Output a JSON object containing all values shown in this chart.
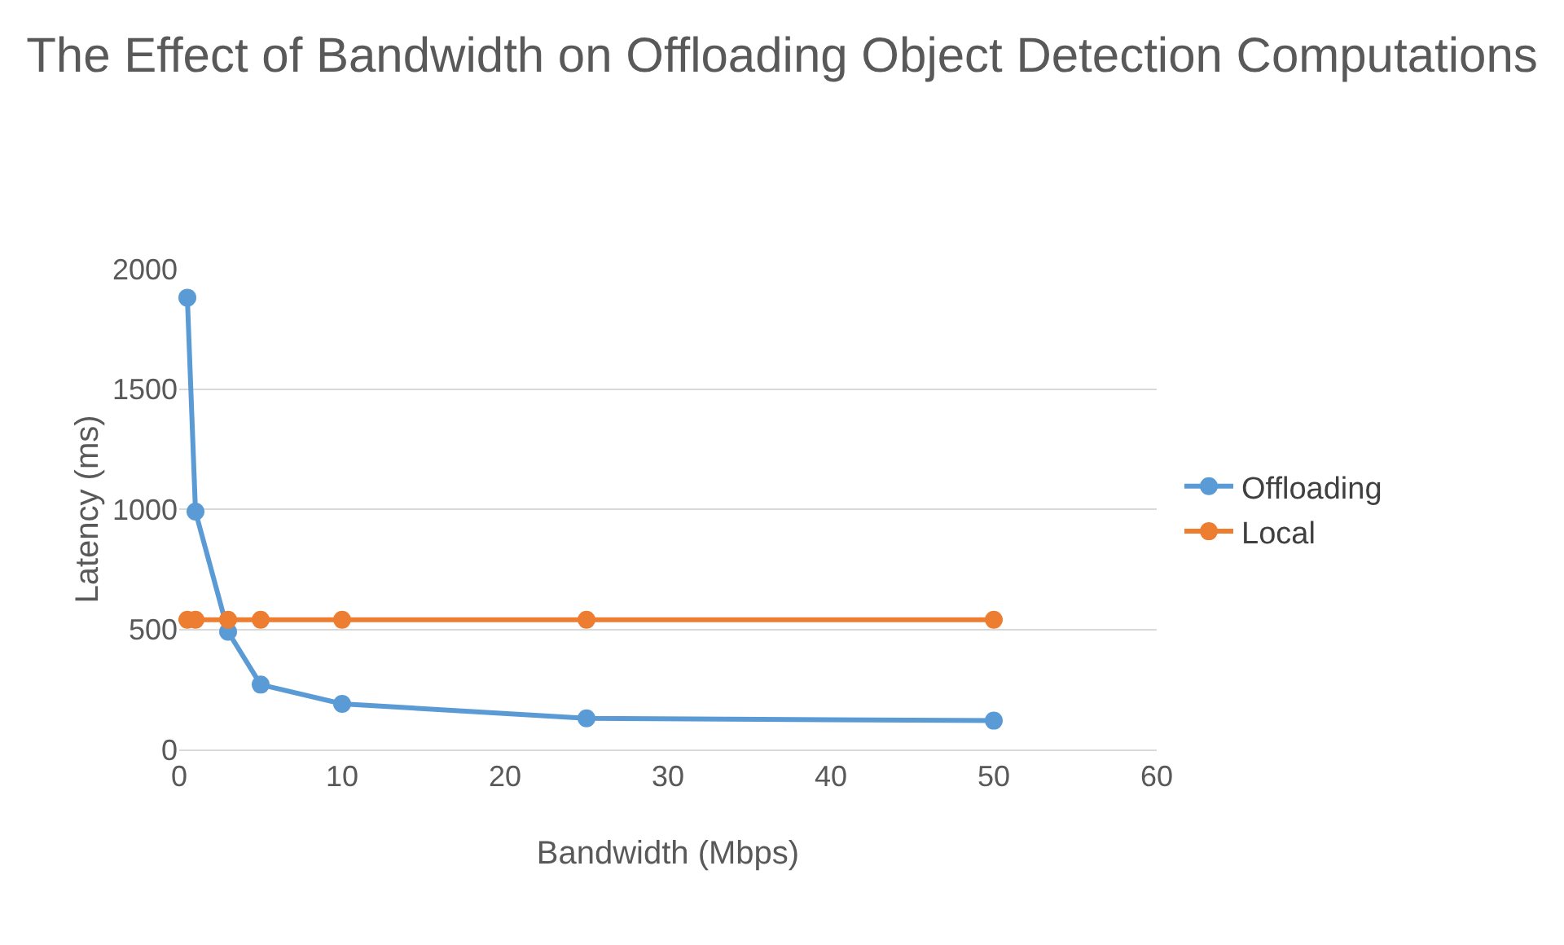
{
  "chart_data": {
    "type": "line",
    "title": "The Effect of Bandwidth on Offloading Object Detection Computations",
    "xlabel": "Bandwidth (Mbps)",
    "ylabel": "Latency (ms)",
    "x": [
      0.5,
      1,
      3,
      5,
      10,
      25,
      50
    ],
    "series": [
      {
        "name": "Offloading",
        "color": "#5b9bd5",
        "values": [
          1880,
          990,
          490,
          270,
          190,
          130,
          120
        ]
      },
      {
        "name": "Local",
        "color": "#ed7d31",
        "values": [
          540,
          540,
          540,
          540,
          540,
          540,
          540
        ]
      }
    ],
    "xlim": [
      0,
      60
    ],
    "xticks": [
      0,
      10,
      20,
      30,
      40,
      50,
      60
    ],
    "ylim": [
      0,
      2000
    ],
    "yticks": [
      0,
      500,
      1000,
      1500,
      2000
    ],
    "grid": "y",
    "legend": "right",
    "marker": "circle",
    "line_style": "solid"
  }
}
